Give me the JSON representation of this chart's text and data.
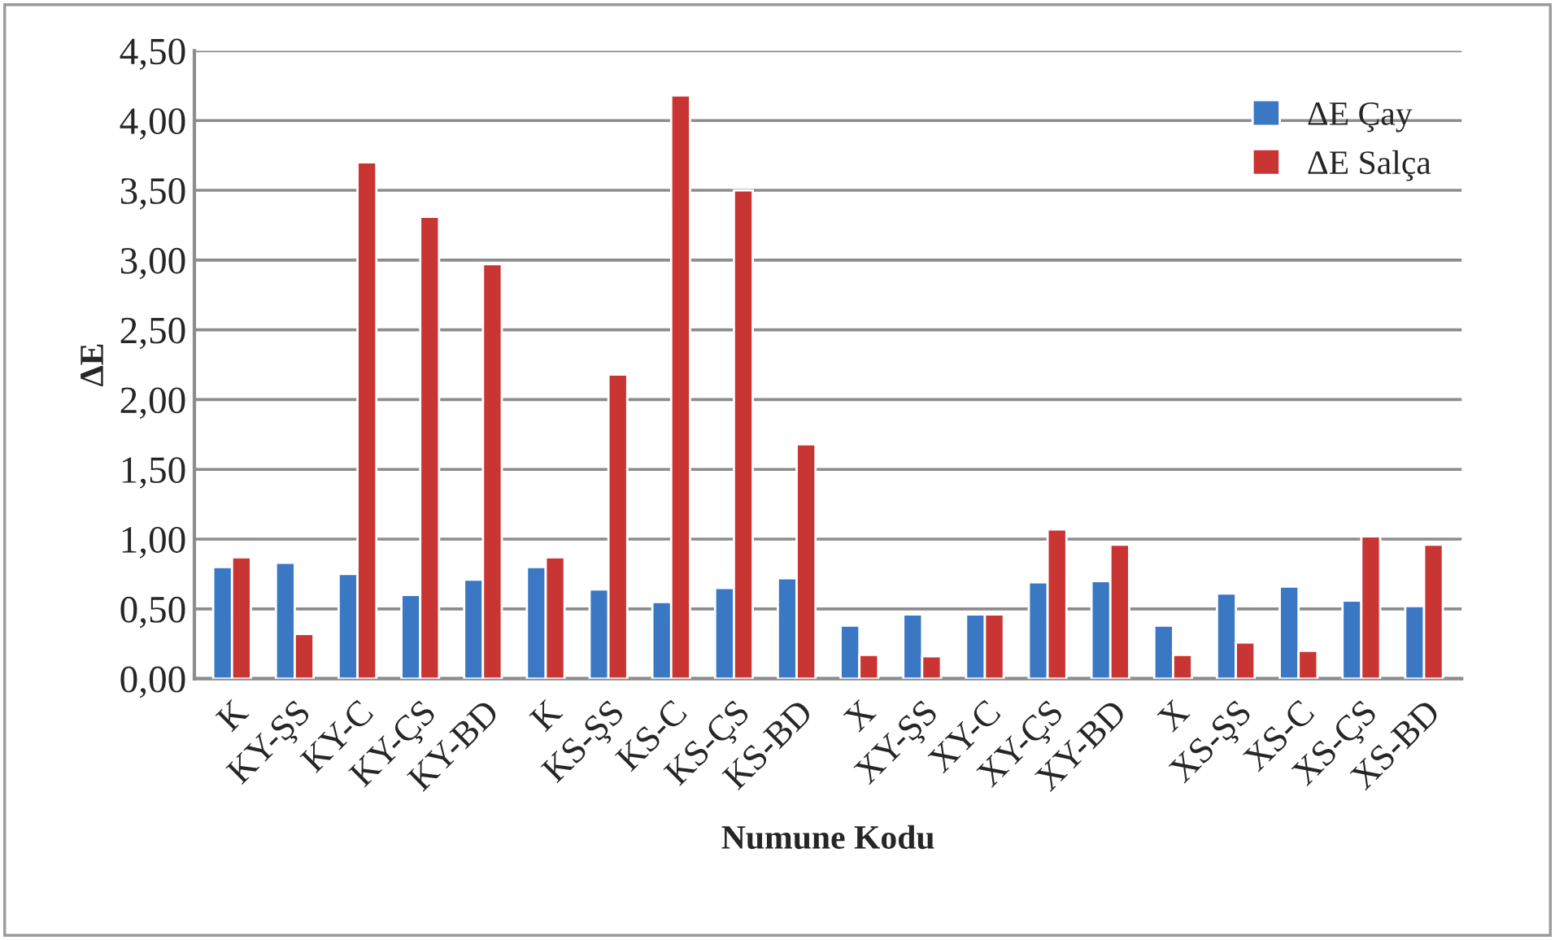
{
  "chart_data": {
    "type": "bar",
    "xlabel": "Numune Kodu",
    "ylabel": "ΔE",
    "categories": [
      "K",
      "KY-ŞS",
      "KY-C",
      "KY-ÇS",
      "KY-BD",
      "K",
      "KS-ŞS",
      "KS-C",
      "KS-ÇS",
      "KS-BD",
      "X",
      "XY-ŞS",
      "XY-C",
      "XY-ÇS",
      "XY-BD",
      "X",
      "XS-ŞS",
      "XS-C",
      "XS-ÇS",
      "XS-BD"
    ],
    "series": [
      {
        "name": "ΔE Çay",
        "color": "#3b78c4",
        "values": [
          0.8,
          0.83,
          0.75,
          0.6,
          0.71,
          0.8,
          0.64,
          0.55,
          0.65,
          0.72,
          0.38,
          0.46,
          0.46,
          0.69,
          0.7,
          0.38,
          0.61,
          0.66,
          0.56,
          0.52
        ]
      },
      {
        "name": "ΔE Salça",
        "color": "#c93532",
        "values": [
          0.87,
          0.32,
          3.7,
          3.31,
          2.97,
          0.87,
          2.18,
          4.18,
          3.5,
          1.68,
          0.17,
          0.16,
          0.46,
          1.07,
          0.96,
          0.17,
          0.26,
          0.2,
          1.02,
          0.96
        ]
      }
    ],
    "ylim": [
      0,
      4.5
    ],
    "yticks": [
      {
        "value": 0,
        "label": "0,00"
      },
      {
        "value": 0.5,
        "label": "0,50"
      },
      {
        "value": 1.0,
        "label": "1,00"
      },
      {
        "value": 1.5,
        "label": "1,50"
      },
      {
        "value": 2.0,
        "label": "2,00"
      },
      {
        "value": 2.5,
        "label": "2,50"
      },
      {
        "value": 3.0,
        "label": "3,00"
      },
      {
        "value": 3.5,
        "label": "3,50"
      },
      {
        "value": 4.0,
        "label": "4,00"
      },
      {
        "value": 4.5,
        "label": "4,50"
      }
    ],
    "grid": "y",
    "legend": "top right"
  }
}
